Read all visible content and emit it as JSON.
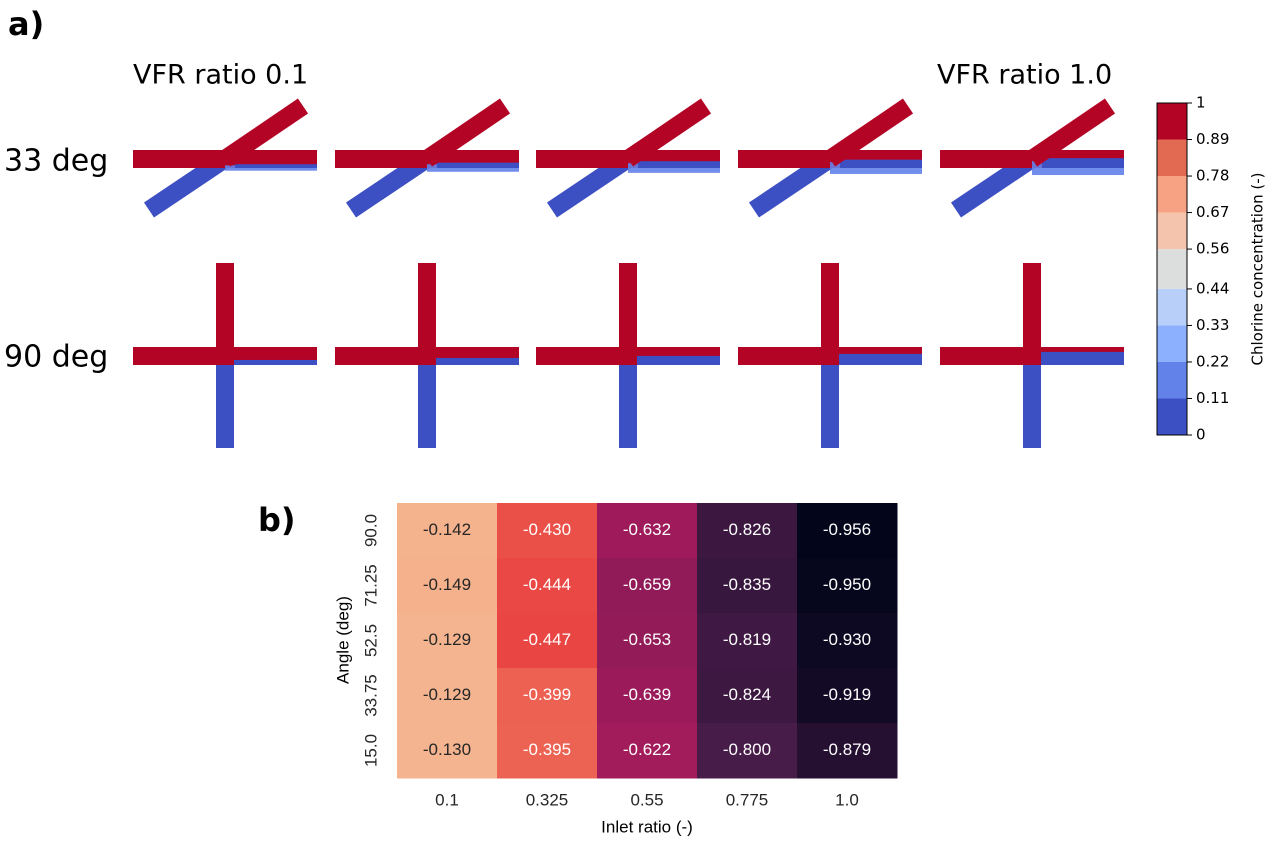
{
  "panel_a": {
    "label": "a)",
    "column_labels": [
      "VFR ratio 0.1",
      "VFR ratio 1.0"
    ],
    "row_labels": [
      "33 deg",
      "90 deg"
    ],
    "colorbar": {
      "label": "Chlorine concentration (-)",
      "ticks": [
        0,
        0.11,
        0.22,
        0.33,
        0.44,
        0.56,
        0.67,
        0.78,
        0.89,
        1
      ],
      "colors": [
        "#3d50c3",
        "#6282ea",
        "#8db0fe",
        "#b7cff9",
        "#dcdddd",
        "#f5c4ac",
        "#f6a283",
        "#e26952",
        "#b40426"
      ]
    }
  },
  "chart_data": {
    "type": "heatmap",
    "label": "b)",
    "xlabel": "Inlet ratio (-)",
    "ylabel": "Angle (deg)",
    "x_categories": [
      "0.1",
      "0.325",
      "0.55",
      "0.775",
      "1.0"
    ],
    "y_categories": [
      "90.0",
      "71.25",
      "52.5",
      "33.75",
      "15.0"
    ],
    "values": [
      [
        -0.142,
        -0.43,
        -0.632,
        -0.826,
        -0.956
      ],
      [
        -0.149,
        -0.444,
        -0.659,
        -0.835,
        -0.95
      ],
      [
        -0.129,
        -0.447,
        -0.653,
        -0.819,
        -0.93
      ],
      [
        -0.129,
        -0.399,
        -0.639,
        -0.824,
        -0.919
      ],
      [
        -0.13,
        -0.395,
        -0.622,
        -0.8,
        -0.879
      ]
    ],
    "value_labels": [
      [
        "-0.142",
        "-0.430",
        "-0.632",
        "-0.826",
        "-0.956"
      ],
      [
        "-0.149",
        "-0.444",
        "-0.659",
        "-0.835",
        "-0.950"
      ],
      [
        "-0.129",
        "-0.447",
        "-0.653",
        "-0.819",
        "-0.930"
      ],
      [
        "-0.129",
        "-0.399",
        "-0.639",
        "-0.824",
        "-0.919"
      ],
      [
        "-0.130",
        "-0.395",
        "-0.622",
        "-0.800",
        "-0.879"
      ]
    ],
    "colormap": [
      "#03051a",
      "#4c1d4b",
      "#a11a5b",
      "#e83f3f",
      "#f69c73",
      "#f4b48f"
    ]
  }
}
